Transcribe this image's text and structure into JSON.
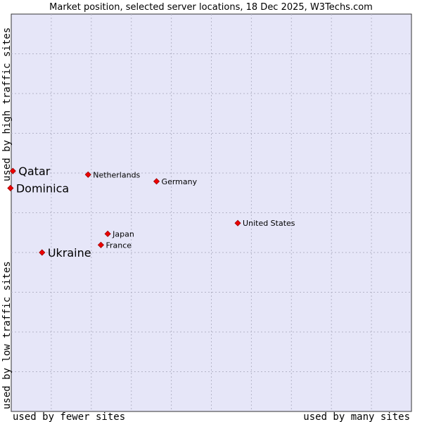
{
  "chart_data": {
    "type": "scatter",
    "title": "Market position, selected server locations, 18 Dec 2025, W3Techs.com",
    "xlabel_low": "used by fewer sites",
    "xlabel_high": "used by many sites",
    "ylabel_low": "used by low traffic sites",
    "ylabel_high": "used by high traffic sites",
    "xlim": [
      0,
      100
    ],
    "ylim": [
      0,
      100
    ],
    "grid": true,
    "colors": {
      "plot_bg": "#e6e6f8",
      "grid": "#b4b4c8",
      "marker": "#ee0000",
      "marker_edge": "#990000"
    },
    "points": [
      {
        "name": "Qatar",
        "x": 0.4,
        "y": 60.5,
        "highlight": true
      },
      {
        "name": "Dominica",
        "x": -0.2,
        "y": 56.2,
        "highlight": true
      },
      {
        "name": "Ukraine",
        "x": 7.7,
        "y": 40.0,
        "highlight": true
      },
      {
        "name": "Netherlands",
        "x": 19.2,
        "y": 59.6,
        "highlight": false
      },
      {
        "name": "Germany",
        "x": 36.3,
        "y": 57.9,
        "highlight": false
      },
      {
        "name": "United States",
        "x": 56.6,
        "y": 47.4,
        "highlight": false
      },
      {
        "name": "Japan",
        "x": 24.1,
        "y": 44.7,
        "highlight": false
      },
      {
        "name": "France",
        "x": 22.4,
        "y": 41.9,
        "highlight": false
      }
    ]
  }
}
